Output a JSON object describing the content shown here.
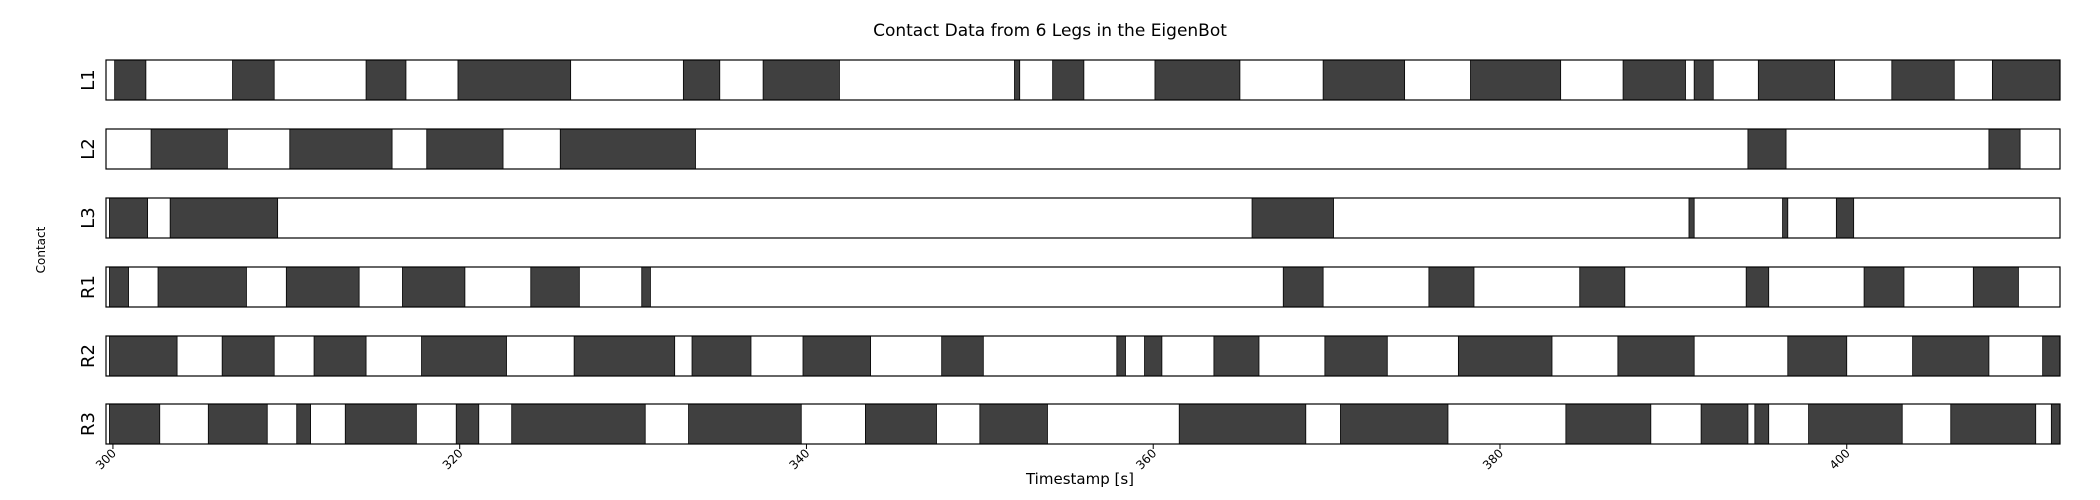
{
  "chart_data": {
    "type": "timeline",
    "title": "Contact Data from 6 Legs in the EigenBot",
    "xlabel": "Timestamp [s]",
    "ylabel": "Contact",
    "xlim": [
      299.6,
      412.3
    ],
    "xticks": [
      300,
      320,
      340,
      360,
      380,
      400
    ],
    "contact_color": "#404040",
    "no_contact_color": "#ffffff",
    "legs": [
      {
        "label": "L1",
        "contact_intervals": [
          [
            300.1,
            301.9
          ],
          [
            306.9,
            309.3
          ],
          [
            314.6,
            316.9
          ],
          [
            319.9,
            326.4
          ],
          [
            332.9,
            335.0
          ],
          [
            337.5,
            341.9
          ],
          [
            352.0,
            352.3
          ],
          [
            354.2,
            356.0
          ],
          [
            360.1,
            365.0
          ],
          [
            369.8,
            374.5
          ],
          [
            378.3,
            383.5
          ],
          [
            387.1,
            390.7
          ],
          [
            391.2,
            392.3
          ],
          [
            394.9,
            399.3
          ],
          [
            402.6,
            406.2
          ],
          [
            408.4,
            412.3
          ]
        ]
      },
      {
        "label": "L2",
        "contact_intervals": [
          [
            302.2,
            306.6
          ],
          [
            310.2,
            316.1
          ],
          [
            318.1,
            322.5
          ],
          [
            325.8,
            333.6
          ],
          [
            394.3,
            396.5
          ],
          [
            408.2,
            410.0
          ]
        ]
      },
      {
        "label": "L3",
        "contact_intervals": [
          [
            299.8,
            302.0
          ],
          [
            303.3,
            309.5
          ],
          [
            365.7,
            370.4
          ],
          [
            390.9,
            391.2
          ],
          [
            396.3,
            396.6
          ],
          [
            399.4,
            400.4
          ]
        ]
      },
      {
        "label": "R1",
        "contact_intervals": [
          [
            299.8,
            300.9
          ],
          [
            302.6,
            307.7
          ],
          [
            310.0,
            314.2
          ],
          [
            316.7,
            320.3
          ],
          [
            324.1,
            326.9
          ],
          [
            330.5,
            331.0
          ],
          [
            367.5,
            369.8
          ],
          [
            375.9,
            378.5
          ],
          [
            384.6,
            387.2
          ],
          [
            394.2,
            395.5
          ],
          [
            401.0,
            403.3
          ],
          [
            407.3,
            409.9
          ]
        ]
      },
      {
        "label": "R2",
        "contact_intervals": [
          [
            299.8,
            303.7
          ],
          [
            306.3,
            309.3
          ],
          [
            311.6,
            314.6
          ],
          [
            317.8,
            322.7
          ],
          [
            326.6,
            332.4
          ],
          [
            333.4,
            336.8
          ],
          [
            339.8,
            343.7
          ],
          [
            347.8,
            350.2
          ],
          [
            357.9,
            358.4
          ],
          [
            359.5,
            360.5
          ],
          [
            363.5,
            366.1
          ],
          [
            369.9,
            373.5
          ],
          [
            377.6,
            383.0
          ],
          [
            386.8,
            391.2
          ],
          [
            396.6,
            400.0
          ],
          [
            403.8,
            408.2
          ],
          [
            411.3,
            412.3
          ]
        ]
      },
      {
        "label": "R3",
        "contact_intervals": [
          [
            299.8,
            302.7
          ],
          [
            305.5,
            308.9
          ],
          [
            310.6,
            311.4
          ],
          [
            313.4,
            317.5
          ],
          [
            319.8,
            321.1
          ],
          [
            323.0,
            330.7
          ],
          [
            333.2,
            339.7
          ],
          [
            343.4,
            347.5
          ],
          [
            350.0,
            353.9
          ],
          [
            361.5,
            368.8
          ],
          [
            370.8,
            377.0
          ],
          [
            383.8,
            388.7
          ],
          [
            391.6,
            394.3
          ],
          [
            394.7,
            395.5
          ],
          [
            397.8,
            403.2
          ],
          [
            406.0,
            410.9
          ],
          [
            411.8,
            412.3
          ]
        ]
      }
    ]
  }
}
